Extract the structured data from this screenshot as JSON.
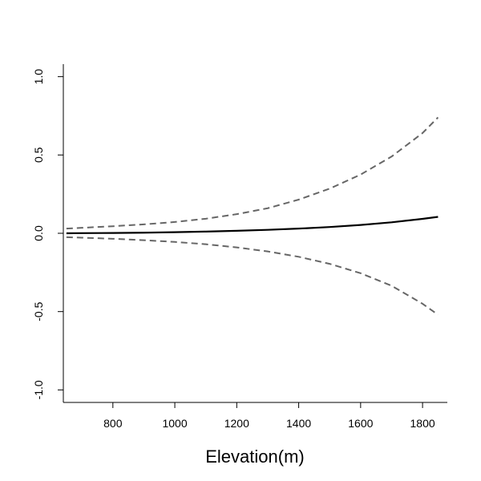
{
  "chart_data": {
    "type": "line",
    "title": "",
    "xlabel": "Elevation(m)",
    "ylabel": "",
    "xlim": [
      640,
      1880
    ],
    "ylim": [
      -1.08,
      1.08
    ],
    "x_ticks": [
      800,
      1000,
      1200,
      1400,
      1600,
      1800
    ],
    "y_ticks": [
      -1.0,
      -0.5,
      0.0,
      0.5,
      1.0
    ],
    "x_tick_labels": [
      "800",
      "1000",
      "1200",
      "1400",
      "1600",
      "1800"
    ],
    "y_tick_labels": [
      "-1.0",
      "-0.5",
      "0.0",
      "0.5",
      "1.0"
    ],
    "grid": false,
    "x": [
      650,
      700,
      800,
      900,
      1000,
      1100,
      1200,
      1300,
      1400,
      1500,
      1600,
      1700,
      1800,
      1850
    ],
    "series": [
      {
        "style": "solid",
        "color": "#000000",
        "values": [
          0.0,
          0.001,
          0.002,
          0.004,
          0.007,
          0.011,
          0.016,
          0.022,
          0.03,
          0.04,
          0.053,
          0.07,
          0.092,
          0.105
        ]
      },
      {
        "style": "dashed",
        "color": "#666666",
        "values": [
          0.03,
          0.035,
          0.045,
          0.057,
          0.072,
          0.093,
          0.122,
          0.16,
          0.215,
          0.285,
          0.375,
          0.49,
          0.64,
          0.74
        ]
      },
      {
        "style": "dashed",
        "color": "#666666",
        "values": [
          -0.025,
          -0.028,
          -0.035,
          -0.044,
          -0.055,
          -0.07,
          -0.09,
          -0.116,
          -0.15,
          -0.195,
          -0.255,
          -0.335,
          -0.45,
          -0.52
        ]
      }
    ]
  }
}
